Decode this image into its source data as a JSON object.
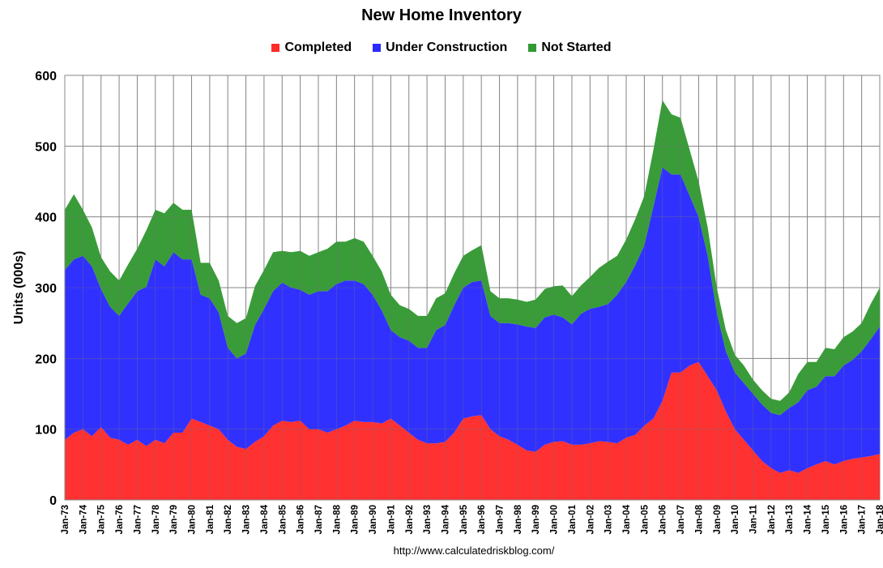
{
  "chart_data": {
    "type": "area",
    "stacked": true,
    "title": "New Home Inventory",
    "xlabel": "",
    "ylabel": "Units (000s)",
    "ylim": [
      0,
      600
    ],
    "yticks": [
      0,
      100,
      200,
      300,
      400,
      500,
      600
    ],
    "grid": true,
    "legend_position": "top-center",
    "xticks": [
      "Jan-73",
      "Jan-74",
      "Jan-75",
      "Jan-76",
      "Jan-77",
      "Jan-78",
      "Jan-79",
      "Jan-80",
      "Jan-81",
      "Jan-82",
      "Jan-83",
      "Jan-84",
      "Jan-85",
      "Jan-86",
      "Jan-87",
      "Jan-88",
      "Jan-89",
      "Jan-90",
      "Jan-91",
      "Jan-92",
      "Jan-93",
      "Jan-94",
      "Jan-95",
      "Jan-96",
      "Jan-97",
      "Jan-98",
      "Jan-99",
      "Jan-00",
      "Jan-01",
      "Jan-02",
      "Jan-03",
      "Jan-04",
      "Jan-05",
      "Jan-06",
      "Jan-07",
      "Jan-08",
      "Jan-09",
      "Jan-10",
      "Jan-11",
      "Jan-12",
      "Jan-13",
      "Jan-14",
      "Jan-15",
      "Jan-16",
      "Jan-17",
      "Jan-18"
    ],
    "x": [
      1973.0,
      1973.5,
      1974.0,
      1974.5,
      1975.0,
      1975.5,
      1976.0,
      1976.5,
      1977.0,
      1977.5,
      1978.0,
      1978.5,
      1979.0,
      1979.5,
      1980.0,
      1980.5,
      1981.0,
      1981.5,
      1982.0,
      1982.5,
      1983.0,
      1983.5,
      1984.0,
      1984.5,
      1985.0,
      1985.5,
      1986.0,
      1986.5,
      1987.0,
      1987.5,
      1988.0,
      1988.5,
      1989.0,
      1989.5,
      1990.0,
      1990.5,
      1991.0,
      1991.5,
      1992.0,
      1992.5,
      1993.0,
      1993.5,
      1994.0,
      1994.5,
      1995.0,
      1995.5,
      1996.0,
      1996.5,
      1997.0,
      1997.5,
      1998.0,
      1998.5,
      1999.0,
      1999.5,
      2000.0,
      2000.5,
      2001.0,
      2001.5,
      2002.0,
      2002.5,
      2003.0,
      2003.5,
      2004.0,
      2004.5,
      2005.0,
      2005.5,
      2006.0,
      2006.5,
      2007.0,
      2007.5,
      2008.0,
      2008.5,
      2009.0,
      2009.5,
      2010.0,
      2010.5,
      2011.0,
      2011.5,
      2012.0,
      2012.5,
      2013.0,
      2013.5,
      2014.0,
      2014.5,
      2015.0,
      2015.5,
      2016.0,
      2016.5,
      2017.0,
      2017.5,
      2018.0
    ],
    "series": [
      {
        "name": "Completed",
        "color": "#ff2a2a",
        "values": [
          85,
          95,
          100,
          90,
          103,
          88,
          85,
          78,
          85,
          76,
          85,
          80,
          95,
          95,
          115,
          110,
          105,
          100,
          85,
          75,
          72,
          82,
          90,
          105,
          112,
          110,
          112,
          100,
          100,
          95,
          100,
          105,
          112,
          110,
          110,
          108,
          115,
          105,
          95,
          85,
          80,
          80,
          82,
          95,
          115,
          118,
          120,
          100,
          90,
          85,
          78,
          70,
          68,
          78,
          82,
          83,
          78,
          78,
          80,
          83,
          82,
          80,
          88,
          92,
          105,
          115,
          140,
          180,
          180,
          190,
          195,
          175,
          155,
          125,
          100,
          85,
          70,
          55,
          45,
          38,
          42,
          38,
          45,
          50,
          55,
          50,
          55,
          58,
          60,
          62,
          65
        ]
      },
      {
        "name": "Under Construction",
        "color": "#2a2aff",
        "values": [
          240,
          245,
          245,
          240,
          195,
          185,
          175,
          200,
          210,
          225,
          255,
          250,
          255,
          245,
          225,
          180,
          180,
          165,
          130,
          125,
          135,
          165,
          180,
          190,
          195,
          190,
          185,
          190,
          195,
          200,
          205,
          205,
          198,
          195,
          180,
          160,
          125,
          125,
          130,
          130,
          135,
          160,
          165,
          180,
          185,
          190,
          190,
          160,
          160,
          165,
          170,
          175,
          175,
          180,
          180,
          175,
          170,
          185,
          190,
          190,
          195,
          210,
          220,
          240,
          255,
          300,
          330,
          280,
          280,
          240,
          205,
          170,
          110,
          85,
          80,
          80,
          80,
          80,
          78,
          82,
          88,
          100,
          110,
          110,
          120,
          125,
          135,
          140,
          150,
          165,
          180
        ]
      },
      {
        "name": "Not Started",
        "color": "#339933",
        "values": [
          85,
          92,
          65,
          55,
          45,
          50,
          50,
          55,
          60,
          80,
          70,
          75,
          70,
          70,
          70,
          45,
          50,
          45,
          45,
          50,
          50,
          55,
          55,
          55,
          45,
          50,
          55,
          55,
          55,
          60,
          60,
          55,
          60,
          60,
          55,
          55,
          50,
          45,
          45,
          45,
          45,
          45,
          45,
          45,
          45,
          45,
          50,
          35,
          35,
          35,
          35,
          35,
          40,
          40,
          40,
          45,
          40,
          40,
          45,
          55,
          60,
          55,
          60,
          65,
          70,
          80,
          95,
          85,
          80,
          65,
          50,
          40,
          35,
          30,
          25,
          25,
          20,
          20,
          20,
          20,
          22,
          40,
          40,
          35,
          40,
          38,
          40,
          40,
          40,
          50,
          55
        ]
      }
    ]
  },
  "source_note": "http://www.calculatedriskblog.com/"
}
